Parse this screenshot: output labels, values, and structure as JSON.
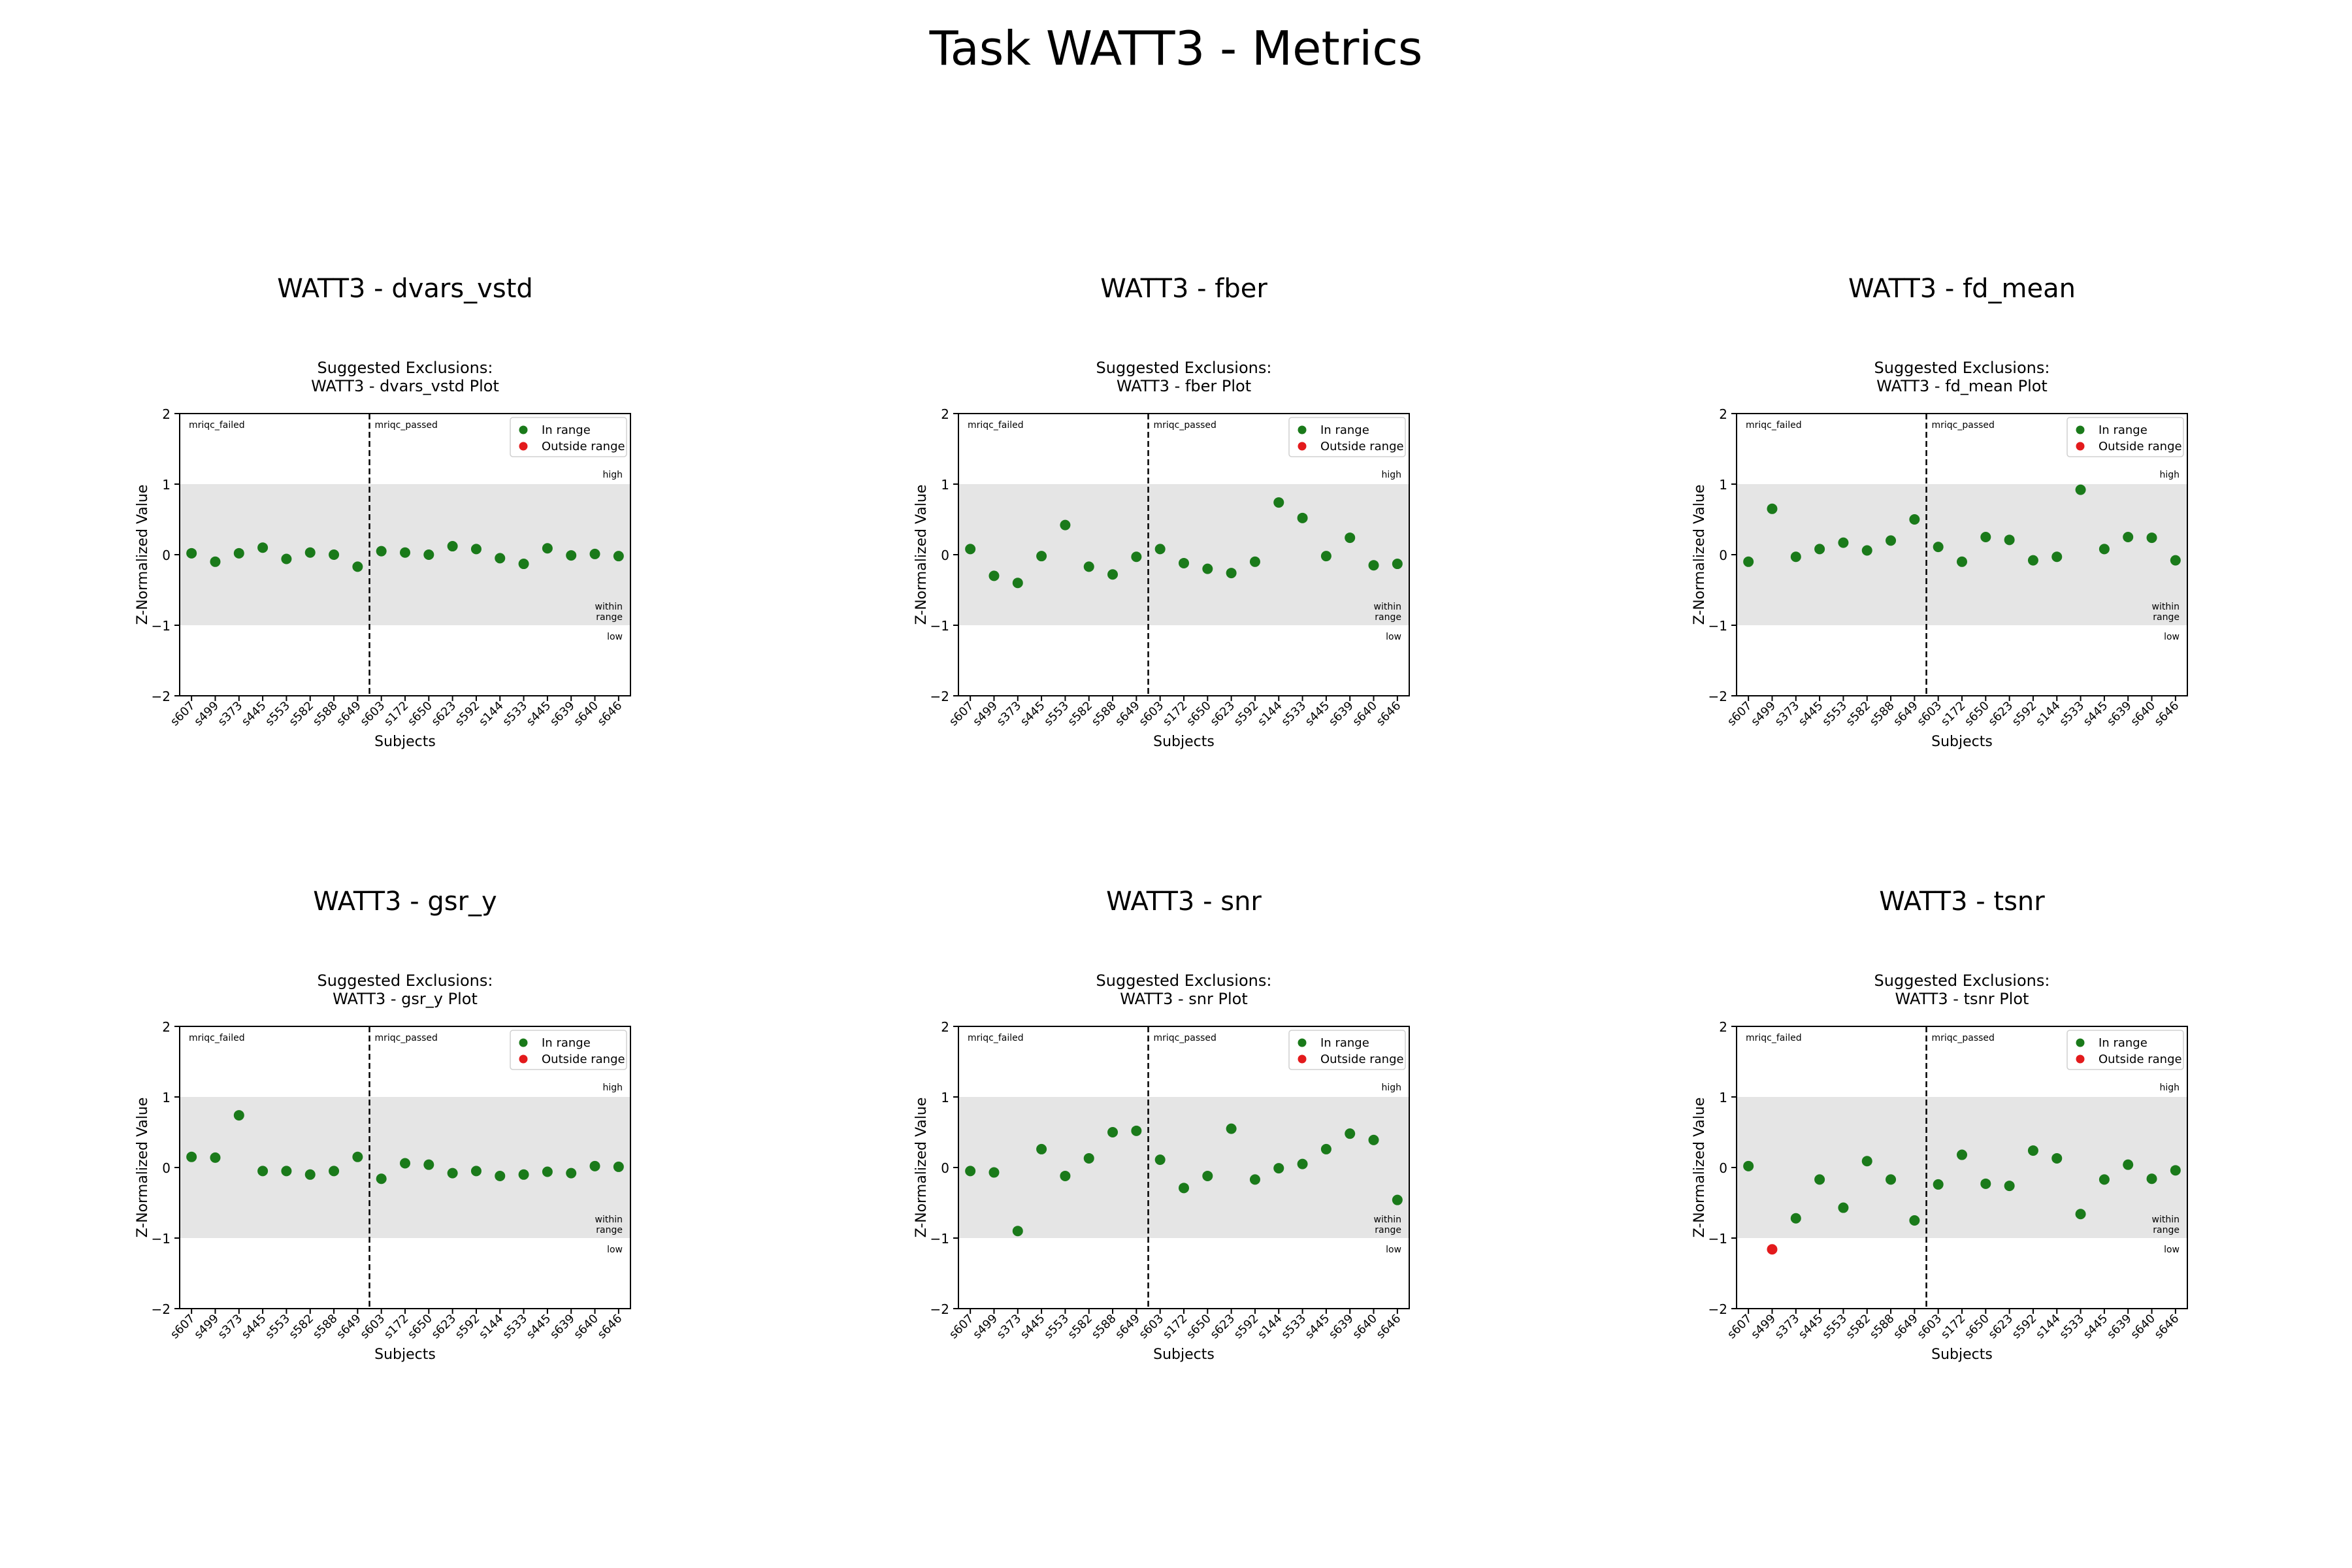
{
  "page": {
    "title": "Task WATT3 - Metrics"
  },
  "colors": {
    "in_range": "#1a7a1a",
    "outside_range": "#e31a1c",
    "band": "#e5e5e5"
  },
  "shared": {
    "subtitle_line1": "Suggested Exclusions:",
    "xlabel": "Subjects",
    "ylabel": "Z-Normalized Value",
    "ylim": [
      -2,
      2
    ],
    "yticks": [
      -2,
      -1,
      0,
      1,
      2
    ],
    "band_range": [
      -1,
      1
    ],
    "group_left_label": "mriqc_failed",
    "group_right_label": "mriqc_passed",
    "band_labels": {
      "high": "high",
      "within_line1": "within",
      "within_line2": "range",
      "low": "low"
    },
    "legend": [
      "In range",
      "Outside range"
    ],
    "split_after_index": 8
  },
  "chart_data": [
    {
      "type": "scatter",
      "title": "WATT3 - dvars_vstd",
      "subtitle": "WATT3 - dvars_vstd Plot",
      "categories": [
        "s607",
        "s499",
        "s373",
        "s445",
        "s553",
        "s582",
        "s588",
        "s649",
        "s603",
        "s172",
        "s650",
        "s623",
        "s592",
        "s144",
        "s533",
        "s445",
        "s639",
        "s640",
        "s646"
      ],
      "values": [
        0.02,
        -0.1,
        0.02,
        0.1,
        -0.06,
        0.03,
        0.0,
        -0.17,
        0.05,
        0.03,
        0.0,
        0.12,
        0.08,
        -0.05,
        -0.13,
        0.09,
        -0.01,
        0.01,
        -0.02
      ],
      "status": [
        "in",
        "in",
        "in",
        "in",
        "in",
        "in",
        "in",
        "in",
        "in",
        "in",
        "in",
        "in",
        "in",
        "in",
        "in",
        "in",
        "in",
        "in",
        "in"
      ]
    },
    {
      "type": "scatter",
      "title": "WATT3 - fber",
      "subtitle": "WATT3 - fber Plot",
      "categories": [
        "s607",
        "s499",
        "s373",
        "s445",
        "s553",
        "s582",
        "s588",
        "s649",
        "s603",
        "s172",
        "s650",
        "s623",
        "s592",
        "s144",
        "s533",
        "s445",
        "s639",
        "s640",
        "s646"
      ],
      "values": [
        0.08,
        -0.3,
        -0.4,
        -0.02,
        0.42,
        -0.17,
        -0.28,
        -0.03,
        0.08,
        -0.12,
        -0.2,
        -0.26,
        -0.1,
        0.74,
        0.52,
        -0.02,
        0.24,
        -0.15,
        -0.13
      ],
      "status": [
        "in",
        "in",
        "in",
        "in",
        "in",
        "in",
        "in",
        "in",
        "in",
        "in",
        "in",
        "in",
        "in",
        "in",
        "in",
        "in",
        "in",
        "in",
        "in"
      ]
    },
    {
      "type": "scatter",
      "title": "WATT3 - fd_mean",
      "subtitle": "WATT3 - fd_mean Plot",
      "categories": [
        "s607",
        "s499",
        "s373",
        "s445",
        "s553",
        "s582",
        "s588",
        "s649",
        "s603",
        "s172",
        "s650",
        "s623",
        "s592",
        "s144",
        "s533",
        "s445",
        "s639",
        "s640",
        "s646"
      ],
      "values": [
        -0.1,
        0.65,
        -0.03,
        0.08,
        0.17,
        0.06,
        0.2,
        0.5,
        0.11,
        -0.1,
        0.25,
        0.21,
        -0.08,
        -0.03,
        0.92,
        0.08,
        0.25,
        0.24,
        -0.08
      ],
      "status": [
        "in",
        "in",
        "in",
        "in",
        "in",
        "in",
        "in",
        "in",
        "in",
        "in",
        "in",
        "in",
        "in",
        "in",
        "in",
        "in",
        "in",
        "in",
        "in"
      ]
    },
    {
      "type": "scatter",
      "title": "WATT3 - gsr_y",
      "subtitle": "WATT3 - gsr_y Plot",
      "categories": [
        "s607",
        "s499",
        "s373",
        "s445",
        "s553",
        "s582",
        "s588",
        "s649",
        "s603",
        "s172",
        "s650",
        "s623",
        "s592",
        "s144",
        "s533",
        "s445",
        "s639",
        "s640",
        "s646"
      ],
      "values": [
        0.15,
        0.14,
        0.74,
        -0.05,
        -0.05,
        -0.1,
        -0.05,
        0.15,
        -0.16,
        0.06,
        0.04,
        -0.08,
        -0.05,
        -0.12,
        -0.1,
        -0.06,
        -0.08,
        0.02,
        0.01
      ],
      "status": [
        "in",
        "in",
        "in",
        "in",
        "in",
        "in",
        "in",
        "in",
        "in",
        "in",
        "in",
        "in",
        "in",
        "in",
        "in",
        "in",
        "in",
        "in",
        "in"
      ]
    },
    {
      "type": "scatter",
      "title": "WATT3 - snr",
      "subtitle": "WATT3 - snr Plot",
      "categories": [
        "s607",
        "s499",
        "s373",
        "s445",
        "s553",
        "s582",
        "s588",
        "s649",
        "s603",
        "s172",
        "s650",
        "s623",
        "s592",
        "s144",
        "s533",
        "s445",
        "s639",
        "s640",
        "s646"
      ],
      "values": [
        -0.05,
        -0.07,
        -0.9,
        0.26,
        -0.12,
        0.13,
        0.5,
        0.52,
        0.11,
        -0.29,
        -0.12,
        0.55,
        -0.17,
        -0.01,
        0.05,
        0.26,
        0.48,
        0.39,
        -0.46
      ],
      "status": [
        "in",
        "in",
        "in",
        "in",
        "in",
        "in",
        "in",
        "in",
        "in",
        "in",
        "in",
        "in",
        "in",
        "in",
        "in",
        "in",
        "in",
        "in",
        "in"
      ]
    },
    {
      "type": "scatter",
      "title": "WATT3 - tsnr",
      "subtitle": "WATT3 - tsnr Plot",
      "categories": [
        "s607",
        "s499",
        "s373",
        "s445",
        "s553",
        "s582",
        "s588",
        "s649",
        "s603",
        "s172",
        "s650",
        "s623",
        "s592",
        "s144",
        "s533",
        "s445",
        "s639",
        "s640",
        "s646"
      ],
      "values": [
        0.02,
        -1.16,
        -0.72,
        -0.17,
        -0.57,
        0.09,
        -0.17,
        -0.75,
        -0.24,
        0.18,
        -0.23,
        -0.26,
        0.24,
        0.13,
        -0.66,
        -0.17,
        0.04,
        -0.16,
        -0.04
      ],
      "status": [
        "in",
        "out",
        "in",
        "in",
        "in",
        "in",
        "in",
        "in",
        "in",
        "in",
        "in",
        "in",
        "in",
        "in",
        "in",
        "in",
        "in",
        "in",
        "in"
      ]
    }
  ]
}
